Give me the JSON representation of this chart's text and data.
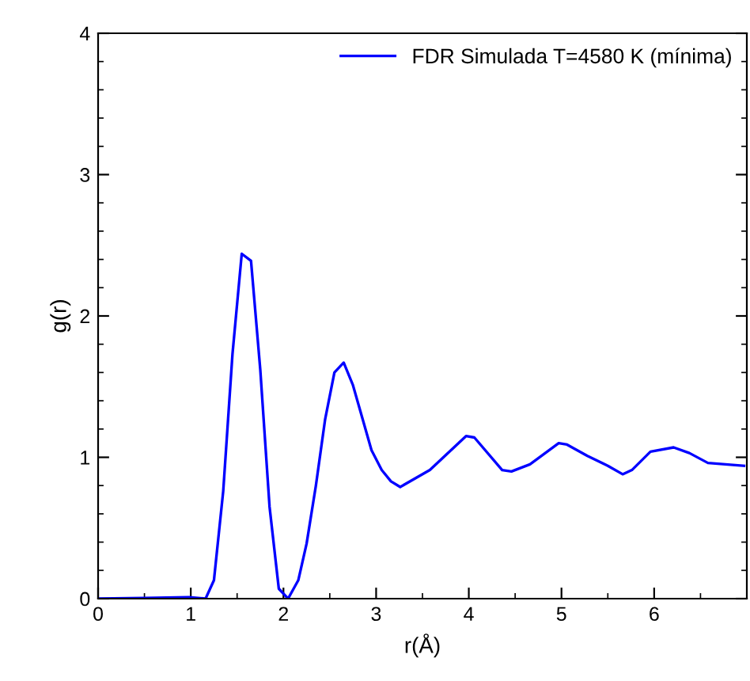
{
  "chart_data": {
    "type": "line",
    "xlabel": "r(Å)",
    "ylabel": "g(r)",
    "xlim": [
      0,
      7
    ],
    "xticks": [
      0,
      1,
      2,
      3,
      4,
      5,
      6
    ],
    "ylim": [
      0,
      4
    ],
    "yticks": [
      0,
      1,
      2,
      3,
      4
    ],
    "grid": false,
    "legend": "top right",
    "marker": "none",
    "line_style": "solid",
    "series": [
      {
        "name": "FDR Simulada T=4580 K (mínima)",
        "color": "#0000ff",
        "x": [
          0,
          0.5,
          0.98,
          1.16,
          1.25,
          1.35,
          1.45,
          1.55,
          1.65,
          1.75,
          1.85,
          1.95,
          2.05,
          2.16,
          2.25,
          2.35,
          2.45,
          2.55,
          2.65,
          2.75,
          2.85,
          2.95,
          3.06,
          3.16,
          3.26,
          3.58,
          3.97,
          4.06,
          4.36,
          4.46,
          4.66,
          4.97,
          5.06,
          5.28,
          5.5,
          5.66,
          5.76,
          5.96,
          6.21,
          6.38,
          6.58,
          6.97
        ],
        "values": [
          0,
          0.005,
          0.01,
          0,
          0.13,
          0.76,
          1.73,
          2.44,
          2.39,
          1.62,
          0.65,
          0.07,
          0,
          0.13,
          0.39,
          0.8,
          1.27,
          1.6,
          1.67,
          1.51,
          1.28,
          1.05,
          0.91,
          0.83,
          0.79,
          0.91,
          1.15,
          1.14,
          0.91,
          0.9,
          0.95,
          1.1,
          1.09,
          1.01,
          0.94,
          0.88,
          0.91,
          1.04,
          1.07,
          1.03,
          0.96,
          0.94
        ]
      }
    ]
  }
}
